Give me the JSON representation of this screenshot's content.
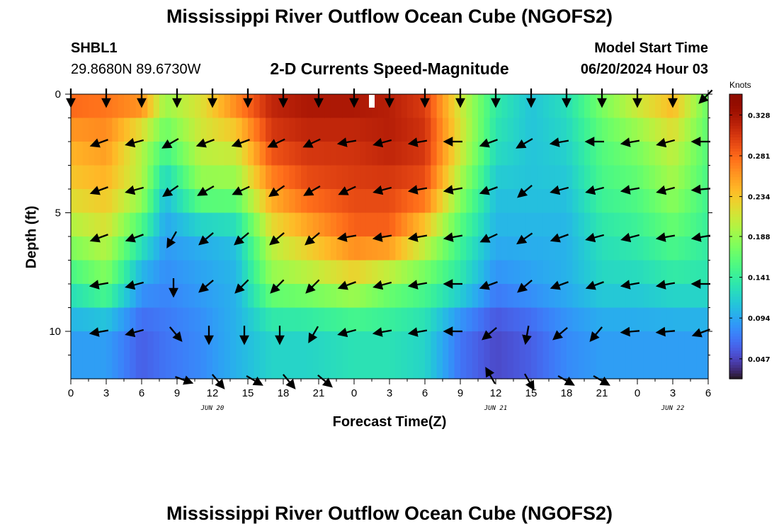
{
  "header": {
    "title": "Mississippi River Outflow Ocean Cube (NGOFS2)",
    "station_id": "SHBL1",
    "station_coords": "29.8680N  89.6730W",
    "subtitle": "2-D Currents Speed-Magnitude",
    "model_start_label": "Model Start Time",
    "model_start_value": "06/20/2024 Hour 03"
  },
  "footer": {
    "title": "Mississippi River Outflow Ocean Cube (NGOFS2)"
  },
  "chart_data": {
    "type": "heatmap",
    "xlabel": "Forecast Time(Z)",
    "ylabel": "Depth (ft)",
    "x_unit": "hours since 2024-06-20 00Z",
    "xlim": [
      0,
      54
    ],
    "ylim": [
      12,
      0
    ],
    "x_tick_values": [
      0,
      3,
      6,
      9,
      12,
      15,
      18,
      21,
      24,
      27,
      30,
      33,
      36,
      39,
      42,
      45,
      48,
      51,
      54
    ],
    "x_tick_labels": [
      "0",
      "3",
      "6",
      "9",
      "12",
      "15",
      "18",
      "21",
      "0",
      "3",
      "6",
      "9",
      "12",
      "15",
      "18",
      "21",
      "0",
      "3",
      "6"
    ],
    "y_tick_values": [
      0,
      5,
      10
    ],
    "y_tick_labels": [
      "0",
      "5",
      "10"
    ],
    "date_labels": [
      {
        "text": "JUN 20",
        "x": 12
      },
      {
        "text": "JUN 21",
        "x": 36
      },
      {
        "text": "JUN 22",
        "x": 51
      }
    ],
    "colorbar": {
      "unit": "Knots",
      "range": [
        0.024,
        0.352
      ],
      "tick_values": [
        0.047,
        0.094,
        0.141,
        0.188,
        0.234,
        0.281,
        0.328
      ],
      "tick_labels": [
        "0.047",
        "0.094",
        "0.141",
        "0.188",
        "0.234",
        "0.281",
        "0.328"
      ],
      "colormap": "turbo"
    },
    "marker": {
      "x": 25.5,
      "depth": 0.3
    },
    "depth_levels": [
      0,
      2,
      4,
      6,
      8,
      10,
      12
    ],
    "speed_time_anchors": [
      0,
      3,
      6,
      8,
      11,
      14,
      17,
      20,
      24,
      27,
      30,
      33,
      36,
      39,
      42,
      45,
      48,
      51,
      54
    ],
    "speed_profiles": [
      [
        0.29,
        0.25,
        0.23,
        0.19,
        0.14,
        0.09
      ],
      [
        0.28,
        0.26,
        0.24,
        0.21,
        0.17,
        0.09
      ],
      [
        0.28,
        0.2,
        0.2,
        0.14,
        0.09,
        0.06
      ],
      [
        0.2,
        0.16,
        0.11,
        0.09,
        0.08,
        0.07
      ],
      [
        0.22,
        0.21,
        0.18,
        0.1,
        0.09,
        0.08
      ],
      [
        0.28,
        0.22,
        0.18,
        0.11,
        0.1,
        0.1
      ],
      [
        0.32,
        0.3,
        0.26,
        0.21,
        0.18,
        0.12
      ],
      [
        0.33,
        0.31,
        0.29,
        0.24,
        0.19,
        0.12
      ],
      [
        0.33,
        0.31,
        0.3,
        0.28,
        0.21,
        0.13
      ],
      [
        0.32,
        0.32,
        0.3,
        0.28,
        0.18,
        0.13
      ],
      [
        0.3,
        0.31,
        0.29,
        0.22,
        0.16,
        0.12
      ],
      [
        0.21,
        0.22,
        0.19,
        0.15,
        0.13,
        0.07
      ],
      [
        0.14,
        0.13,
        0.11,
        0.1,
        0.08,
        0.05
      ],
      [
        0.11,
        0.11,
        0.11,
        0.1,
        0.09,
        0.06
      ],
      [
        0.13,
        0.12,
        0.11,
        0.1,
        0.1,
        0.08
      ],
      [
        0.18,
        0.16,
        0.15,
        0.13,
        0.12,
        0.09
      ],
      [
        0.22,
        0.18,
        0.16,
        0.14,
        0.12,
        0.09
      ],
      [
        0.25,
        0.21,
        0.19,
        0.16,
        0.13,
        0.09
      ],
      [
        0.17,
        0.16,
        0.15,
        0.14,
        0.13,
        0.09
      ]
    ],
    "vector_rows": [
      {
        "depth": 0,
        "arrows": [
          [
            0,
            -90
          ],
          [
            3,
            -90
          ],
          [
            6,
            -90
          ],
          [
            9,
            -90
          ],
          [
            12,
            -90
          ],
          [
            15,
            -90
          ],
          [
            18,
            -90
          ],
          [
            21,
            -90
          ],
          [
            24,
            -90
          ],
          [
            27,
            -90
          ],
          [
            30,
            -90
          ],
          [
            33,
            -90
          ],
          [
            36,
            -90
          ],
          [
            39,
            -90
          ],
          [
            42,
            -90
          ],
          [
            45,
            -90
          ],
          [
            48,
            -90
          ],
          [
            51,
            -90
          ],
          [
            54,
            -45
          ]
        ]
      },
      {
        "depth": 2,
        "arrows": [
          [
            2.7,
            -20
          ],
          [
            5.7,
            -15
          ],
          [
            8.7,
            -30
          ],
          [
            11.7,
            -20
          ],
          [
            14.7,
            -20
          ],
          [
            17.7,
            -25
          ],
          [
            20.7,
            -25
          ],
          [
            23.7,
            -10
          ],
          [
            26.7,
            -15
          ],
          [
            29.7,
            -10
          ],
          [
            32.7,
            0
          ],
          [
            35.7,
            -20
          ],
          [
            38.7,
            -30
          ],
          [
            41.7,
            -10
          ],
          [
            44.7,
            0
          ],
          [
            47.7,
            -10
          ],
          [
            50.7,
            -15
          ],
          [
            53.7,
            0
          ]
        ]
      },
      {
        "depth": 4,
        "arrows": [
          [
            2.7,
            -20
          ],
          [
            5.7,
            -15
          ],
          [
            8.7,
            -35
          ],
          [
            11.7,
            -30
          ],
          [
            14.7,
            -25
          ],
          [
            17.7,
            -35
          ],
          [
            20.7,
            -30
          ],
          [
            23.7,
            -25
          ],
          [
            26.7,
            -15
          ],
          [
            29.7,
            -10
          ],
          [
            32.7,
            -10
          ],
          [
            35.7,
            -20
          ],
          [
            38.7,
            -40
          ],
          [
            41.7,
            -15
          ],
          [
            44.7,
            -15
          ],
          [
            47.7,
            -10
          ],
          [
            50.7,
            -15
          ],
          [
            53.7,
            -5
          ]
        ]
      },
      {
        "depth": 6,
        "arrows": [
          [
            2.7,
            -20
          ],
          [
            5.7,
            -20
          ],
          [
            8.7,
            -60
          ],
          [
            11.7,
            -40
          ],
          [
            14.7,
            -40
          ],
          [
            17.7,
            -40
          ],
          [
            20.7,
            -40
          ],
          [
            23.7,
            -10
          ],
          [
            26.7,
            -10
          ],
          [
            29.7,
            -10
          ],
          [
            32.7,
            -10
          ],
          [
            35.7,
            -25
          ],
          [
            38.7,
            -35
          ],
          [
            41.7,
            -20
          ],
          [
            44.7,
            -15
          ],
          [
            47.7,
            -15
          ],
          [
            50.7,
            -10
          ],
          [
            53.7,
            -10
          ]
        ]
      },
      {
        "depth": 8,
        "arrows": [
          [
            2.7,
            -10
          ],
          [
            5.7,
            -15
          ],
          [
            8.7,
            -90
          ],
          [
            11.7,
            -40
          ],
          [
            14.7,
            -45
          ],
          [
            17.7,
            -45
          ],
          [
            20.7,
            -45
          ],
          [
            23.7,
            -20
          ],
          [
            26.7,
            -15
          ],
          [
            29.7,
            -10
          ],
          [
            32.7,
            0
          ],
          [
            35.7,
            -20
          ],
          [
            38.7,
            -40
          ],
          [
            41.7,
            -20
          ],
          [
            44.7,
            -20
          ],
          [
            47.7,
            -10
          ],
          [
            50.7,
            -10
          ],
          [
            53.7,
            0
          ]
        ]
      },
      {
        "depth": 10,
        "arrows": [
          [
            2.7,
            -10
          ],
          [
            5.7,
            -15
          ],
          [
            8.7,
            -130
          ],
          [
            11.7,
            -90
          ],
          [
            14.7,
            -90
          ],
          [
            17.7,
            -90
          ],
          [
            20.7,
            -60
          ],
          [
            23.7,
            -15
          ],
          [
            26.7,
            -10
          ],
          [
            29.7,
            -10
          ],
          [
            32.7,
            0
          ],
          [
            35.7,
            -40
          ],
          [
            38.7,
            -80
          ],
          [
            41.7,
            -40
          ],
          [
            44.7,
            -50
          ],
          [
            47.7,
            -5
          ],
          [
            50.7,
            -5
          ],
          [
            53.7,
            -20
          ]
        ]
      },
      {
        "depth": 12,
        "arrows": [
          [
            9.3,
            200
          ],
          [
            12.3,
            230
          ],
          [
            15.3,
            210
          ],
          [
            18.3,
            230
          ],
          [
            21.3,
            220
          ],
          [
            35.7,
            60
          ],
          [
            38.7,
            240
          ],
          [
            41.7,
            210
          ],
          [
            44.7,
            210
          ]
        ]
      }
    ]
  }
}
